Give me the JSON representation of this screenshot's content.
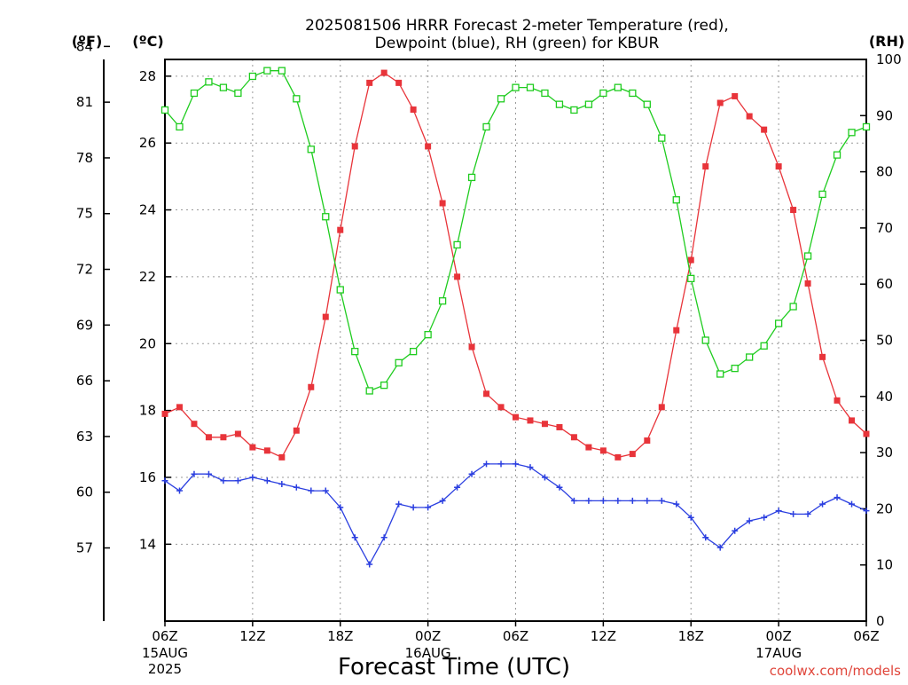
{
  "chart_data": {
    "type": "line",
    "title_line1": "2025081506 HRRR Forecast 2-meter Temperature (red),",
    "title_line2": "Dewpoint (blue), RH (green) for KBUR",
    "xlabel": "Forecast Time (UTC)",
    "credit": "coolwx.com/models",
    "units": {
      "f": "(ºF)",
      "c": "(ºC)",
      "rh": "(RH)"
    },
    "x_ticks": [
      {
        "hour": 0,
        "label": "06Z",
        "date": "15AUG",
        "year": "2025"
      },
      {
        "hour": 6,
        "label": "12Z"
      },
      {
        "hour": 12,
        "label": "18Z"
      },
      {
        "hour": 18,
        "label": "00Z",
        "date": "16AUG"
      },
      {
        "hour": 24,
        "label": "06Z"
      },
      {
        "hour": 30,
        "label": "12Z"
      },
      {
        "hour": 36,
        "label": "18Z"
      },
      {
        "hour": 42,
        "label": "00Z",
        "date": "17AUG"
      },
      {
        "hour": 48,
        "label": "06Z"
      }
    ],
    "xlim": [
      0,
      48
    ],
    "ylim_c": [
      11.7,
      28.5
    ],
    "ylim_rh": [
      0,
      100
    ],
    "y_ticks_c": [
      14,
      16,
      18,
      20,
      22,
      24,
      26,
      28
    ],
    "y_ticks_f": [
      57,
      60,
      63,
      66,
      69,
      72,
      75,
      78,
      81,
      84
    ],
    "y_ticks_rh": [
      0,
      10,
      20,
      30,
      40,
      50,
      60,
      70,
      80,
      90,
      100
    ],
    "grid": true,
    "colors": {
      "temperature": "#e8343a",
      "dewpoint": "#2b3fe0",
      "rh": "#1fcc1f"
    },
    "series": [
      {
        "name": "Temperature",
        "axis": "c",
        "values": [
          17.9,
          18.1,
          17.6,
          17.2,
          17.2,
          17.3,
          16.9,
          16.8,
          16.6,
          17.4,
          18.7,
          20.8,
          23.4,
          25.9,
          27.8,
          28.1,
          27.8,
          27.0,
          25.9,
          24.2,
          22.0,
          19.9,
          18.5,
          18.1,
          17.8,
          17.7,
          17.6,
          17.5,
          17.2,
          16.9,
          16.8,
          16.6,
          16.7,
          17.1,
          18.1,
          20.4,
          22.5,
          25.3,
          27.2,
          27.4,
          26.8,
          26.4,
          25.3,
          24.0,
          21.8,
          19.6,
          18.3,
          17.7,
          17.3
        ]
      },
      {
        "name": "Dewpoint",
        "axis": "c",
        "values": [
          15.9,
          15.6,
          16.1,
          16.1,
          15.9,
          15.9,
          16.0,
          15.9,
          15.8,
          15.7,
          15.6,
          15.6,
          15.1,
          14.2,
          13.4,
          14.2,
          15.2,
          15.1,
          15.1,
          15.3,
          15.7,
          16.1,
          16.4,
          16.4,
          16.4,
          16.3,
          16.0,
          15.7,
          15.3,
          15.3,
          15.3,
          15.3,
          15.3,
          15.3,
          15.3,
          15.2,
          14.8,
          14.2,
          13.9,
          14.4,
          14.7,
          14.8,
          15.0,
          14.9,
          14.9,
          15.2,
          15.4,
          15.2,
          15.0
        ]
      },
      {
        "name": "RH",
        "axis": "rh",
        "values": [
          91,
          88,
          94,
          96,
          95,
          94,
          97,
          98,
          98,
          93,
          84,
          72,
          59,
          48,
          41,
          42,
          46,
          48,
          51,
          57,
          67,
          79,
          88,
          93,
          95,
          95,
          94,
          92,
          91,
          92,
          94,
          95,
          94,
          92,
          86,
          75,
          61,
          50,
          44,
          45,
          47,
          49,
          53,
          56,
          65,
          76,
          83,
          87,
          88
        ]
      }
    ]
  }
}
